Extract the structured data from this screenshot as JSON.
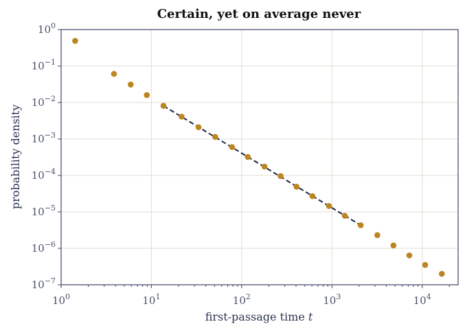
{
  "chart_data": {
    "type": "scatter",
    "title": "Certain, yet on average never",
    "xlabel": "first-passage time",
    "xlabel_var": "t",
    "ylabel": "probability density",
    "xscale": "log",
    "yscale": "log",
    "xlim": [
      1,
      25000
    ],
    "ylim": [
      1e-07,
      1
    ],
    "grid": true,
    "x_ticks": [
      {
        "value": 1,
        "base": "10",
        "exp": "0"
      },
      {
        "value": 10,
        "base": "10",
        "exp": "1"
      },
      {
        "value": 100,
        "base": "10",
        "exp": "2"
      },
      {
        "value": 1000,
        "base": "10",
        "exp": "3"
      },
      {
        "value": 10000,
        "base": "10",
        "exp": "4"
      }
    ],
    "y_ticks": [
      {
        "value": 1,
        "base": "10",
        "exp": "0"
      },
      {
        "value": 0.1,
        "base": "10",
        "exp": "−1"
      },
      {
        "value": 0.01,
        "base": "10",
        "exp": "−2"
      },
      {
        "value": 0.001,
        "base": "10",
        "exp": "−3"
      },
      {
        "value": 0.0001,
        "base": "10",
        "exp": "−4"
      },
      {
        "value": 1e-05,
        "base": "10",
        "exp": "−5"
      },
      {
        "value": 1e-06,
        "base": "10",
        "exp": "−6"
      },
      {
        "value": 1e-07,
        "base": "10",
        "exp": "−7"
      }
    ],
    "series": [
      {
        "kind": "scatter",
        "color": "#bd8520",
        "x": [
          1.43,
          3.85,
          5.9,
          8.9,
          13.6,
          21.6,
          33.3,
          50.9,
          78.2,
          117,
          179,
          270,
          405,
          608,
          927,
          1388,
          2083,
          3182,
          4801,
          7200,
          10783,
          16487
        ],
        "y": [
          0.49,
          0.061,
          0.031,
          0.016,
          0.0081,
          0.0041,
          0.0021,
          0.00114,
          0.0006,
          0.00032,
          0.000175,
          9.6e-05,
          4.9e-05,
          2.7e-05,
          1.45e-05,
          7.8e-06,
          4.3e-06,
          2.3e-06,
          1.2e-06,
          6.4e-07,
          3.5e-07,
          2e-07
        ]
      },
      {
        "kind": "line",
        "style": "dashed",
        "color": "#1c2340",
        "x": [
          13.6,
          2083
        ],
        "y": [
          0.0081,
          4.3e-06
        ]
      }
    ]
  }
}
